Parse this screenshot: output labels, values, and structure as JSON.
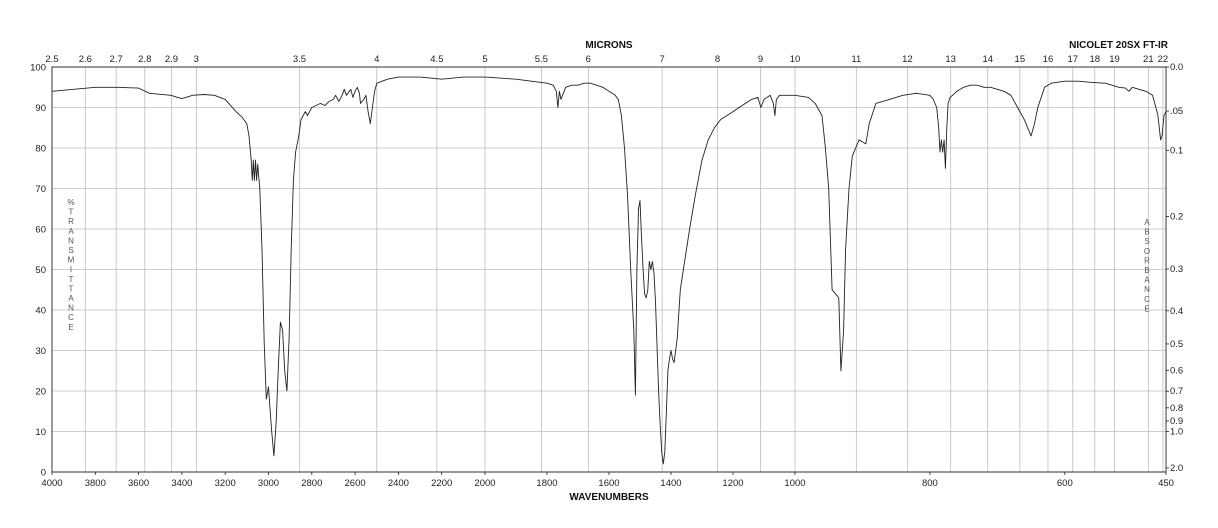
{
  "chart_data": {
    "type": "line",
    "title": "",
    "top_axis_title": "MICRONS",
    "instrument_label": "NICOLET 20SX FT-IR",
    "xlabel": "WAVENUMBERS",
    "ylabel_left": "%TRANSMITTANCE",
    "ylabel_right": "ABSORBANCE",
    "xlim": [
      4000,
      450
    ],
    "ylim": [
      0,
      100
    ],
    "grid": true,
    "x_ticks": [
      4000,
      3800,
      3600,
      3400,
      3200,
      3000,
      2800,
      2600,
      2400,
      2200,
      2000,
      1800,
      1600,
      1400,
      1200,
      1000,
      800,
      600,
      450
    ],
    "x_tick_labels": [
      "4000",
      "3800",
      "3600",
      "3400",
      "3200",
      "3000",
      "2800",
      "2600",
      "2400",
      "2200",
      "2000",
      "1800",
      "1600",
      "1400",
      "1200",
      "1000",
      "800",
      "600",
      "450"
    ],
    "y_ticks": [
      0,
      10,
      20,
      30,
      40,
      50,
      60,
      70,
      80,
      90,
      100
    ],
    "y_tick_labels": [
      "0",
      "10",
      "20",
      "30",
      "40",
      "50",
      "60",
      "70",
      "80",
      "90",
      "100"
    ],
    "micron_ticks": [
      {
        "value": 2.5,
        "label": "2.5"
      },
      {
        "value": 2.6,
        "label": "2.6"
      },
      {
        "value": 2.7,
        "label": "2.7"
      },
      {
        "value": 2.8,
        "label": "2.8"
      },
      {
        "value": 2.9,
        "label": "2.9"
      },
      {
        "value": 3,
        "label": "3"
      },
      {
        "value": 3.5,
        "label": "3.5"
      },
      {
        "value": 4,
        "label": "4"
      },
      {
        "value": 4.5,
        "label": "4.5"
      },
      {
        "value": 5,
        "label": "5"
      },
      {
        "value": 5.5,
        "label": "5.5"
      },
      {
        "value": 6,
        "label": "6"
      },
      {
        "value": 7,
        "label": "7"
      },
      {
        "value": 8,
        "label": "8"
      },
      {
        "value": 9,
        "label": "9"
      },
      {
        "value": 10,
        "label": "10"
      },
      {
        "value": 11,
        "label": "11"
      },
      {
        "value": 12,
        "label": "12"
      },
      {
        "value": 13,
        "label": "13"
      },
      {
        "value": 14,
        "label": "14"
      },
      {
        "value": 15,
        "label": "15"
      },
      {
        "value": 16,
        "label": "16"
      },
      {
        "value": 17,
        "label": "17"
      },
      {
        "value": 18,
        "label": "18"
      },
      {
        "value": 19,
        "label": "19"
      },
      {
        "value": 21,
        "label": "21"
      },
      {
        "value": 22,
        "label": "22"
      }
    ],
    "absorbance_ticks": [
      {
        "value": 0,
        "label": "0.0"
      },
      {
        "value": 0.05,
        "label": ".05"
      },
      {
        "value": 0.1,
        "label": "0.1"
      },
      {
        "value": 0.2,
        "label": "0.2"
      },
      {
        "value": 0.3,
        "label": "0.3"
      },
      {
        "value": 0.4,
        "label": "0.4"
      },
      {
        "value": 0.5,
        "label": "0.5"
      },
      {
        "value": 0.6,
        "label": "0.6"
      },
      {
        "value": 0.7,
        "label": "0.7"
      },
      {
        "value": 0.8,
        "label": "0.8"
      },
      {
        "value": 0.9,
        "label": "0.9"
      },
      {
        "value": 1.0,
        "label": "1.0"
      },
      {
        "value": 2.0,
        "label": "2.0"
      }
    ],
    "series": [
      {
        "values": [
          [
            4000,
            94
          ],
          [
            3900,
            94.5
          ],
          [
            3800,
            95
          ],
          [
            3700,
            95
          ],
          [
            3600,
            94.8
          ],
          [
            3550,
            93.5
          ],
          [
            3450,
            93
          ],
          [
            3420,
            92.5
          ],
          [
            3400,
            92.2
          ],
          [
            3350,
            93
          ],
          [
            3300,
            93.2
          ],
          [
            3250,
            93
          ],
          [
            3200,
            92
          ],
          [
            3150,
            89
          ],
          [
            3120,
            87.5
          ],
          [
            3100,
            86
          ],
          [
            3090,
            83
          ],
          [
            3080,
            77
          ],
          [
            3075,
            72
          ],
          [
            3070,
            77
          ],
          [
            3065,
            72
          ],
          [
            3060,
            77
          ],
          [
            3055,
            72
          ],
          [
            3050,
            76
          ],
          [
            3040,
            70
          ],
          [
            3030,
            55
          ],
          [
            3020,
            32
          ],
          [
            3010,
            18
          ],
          [
            3000,
            21
          ],
          [
            2995,
            17
          ],
          [
            2985,
            10
          ],
          [
            2975,
            4
          ],
          [
            2965,
            12
          ],
          [
            2955,
            25
          ],
          [
            2945,
            37
          ],
          [
            2935,
            35
          ],
          [
            2925,
            25
          ],
          [
            2915,
            20
          ],
          [
            2905,
            33
          ],
          [
            2895,
            55
          ],
          [
            2885,
            72
          ],
          [
            2875,
            79
          ],
          [
            2860,
            83
          ],
          [
            2850,
            87
          ],
          [
            2830,
            89
          ],
          [
            2820,
            88
          ],
          [
            2800,
            90
          ],
          [
            2780,
            90.5
          ],
          [
            2760,
            91
          ],
          [
            2740,
            90.5
          ],
          [
            2720,
            91.5
          ],
          [
            2700,
            92
          ],
          [
            2690,
            93
          ],
          [
            2675,
            91.5
          ],
          [
            2660,
            93
          ],
          [
            2650,
            94.5
          ],
          [
            2640,
            93
          ],
          [
            2620,
            94.5
          ],
          [
            2610,
            92.5
          ],
          [
            2600,
            94
          ],
          [
            2590,
            95
          ],
          [
            2580,
            93.5
          ],
          [
            2575,
            91
          ],
          [
            2560,
            92
          ],
          [
            2550,
            93
          ],
          [
            2540,
            89
          ],
          [
            2530,
            86
          ],
          [
            2520,
            90
          ],
          [
            2510,
            94
          ],
          [
            2500,
            96
          ],
          [
            2450,
            97
          ],
          [
            2400,
            97.5
          ],
          [
            2300,
            97.5
          ],
          [
            2200,
            97
          ],
          [
            2100,
            97.5
          ],
          [
            2000,
            97.5
          ],
          [
            1900,
            97
          ],
          [
            1850,
            96.5
          ],
          [
            1800,
            96
          ],
          [
            1780,
            95.5
          ],
          [
            1770,
            94
          ],
          [
            1765,
            90
          ],
          [
            1760,
            94
          ],
          [
            1755,
            92
          ],
          [
            1740,
            95
          ],
          [
            1720,
            95.5
          ],
          [
            1700,
            95.5
          ],
          [
            1680,
            96
          ],
          [
            1660,
            96
          ],
          [
            1640,
            95.5
          ],
          [
            1620,
            95
          ],
          [
            1600,
            94
          ],
          [
            1580,
            93
          ],
          [
            1570,
            92
          ],
          [
            1560,
            88
          ],
          [
            1550,
            80
          ],
          [
            1540,
            68
          ],
          [
            1530,
            50
          ],
          [
            1520,
            35
          ],
          [
            1515,
            19
          ],
          [
            1510,
            50
          ],
          [
            1505,
            65
          ],
          [
            1500,
            67
          ],
          [
            1495,
            58
          ],
          [
            1490,
            50
          ],
          [
            1485,
            44
          ],
          [
            1480,
            43
          ],
          [
            1475,
            45
          ],
          [
            1470,
            52
          ],
          [
            1465,
            50
          ],
          [
            1460,
            52
          ],
          [
            1455,
            49
          ],
          [
            1450,
            42
          ],
          [
            1440,
            20
          ],
          [
            1435,
            12
          ],
          [
            1430,
            5
          ],
          [
            1425,
            2
          ],
          [
            1420,
            5
          ],
          [
            1415,
            15
          ],
          [
            1410,
            25
          ],
          [
            1405,
            28
          ],
          [
            1400,
            30
          ],
          [
            1395,
            28
          ],
          [
            1390,
            27
          ],
          [
            1380,
            33
          ],
          [
            1370,
            45
          ],
          [
            1360,
            50
          ],
          [
            1340,
            60
          ],
          [
            1320,
            69
          ],
          [
            1300,
            77
          ],
          [
            1280,
            82
          ],
          [
            1260,
            85
          ],
          [
            1240,
            87
          ],
          [
            1220,
            88
          ],
          [
            1200,
            89
          ],
          [
            1180,
            90
          ],
          [
            1160,
            91
          ],
          [
            1140,
            92
          ],
          [
            1120,
            92.5
          ],
          [
            1110,
            90
          ],
          [
            1100,
            92
          ],
          [
            1090,
            92.5
          ],
          [
            1080,
            93
          ],
          [
            1070,
            91
          ],
          [
            1065,
            88
          ],
          [
            1060,
            92
          ],
          [
            1050,
            93
          ],
          [
            1020,
            93
          ],
          [
            1000,
            93
          ],
          [
            980,
            92.5
          ],
          [
            970,
            91
          ],
          [
            960,
            88
          ],
          [
            955,
            80
          ],
          [
            950,
            70
          ],
          [
            945,
            45
          ],
          [
            940,
            44
          ],
          [
            935,
            43
          ],
          [
            932,
            25
          ],
          [
            928,
            35
          ],
          [
            925,
            55
          ],
          [
            920,
            70
          ],
          [
            915,
            78
          ],
          [
            905,
            82
          ],
          [
            895,
            81
          ],
          [
            890,
            86
          ],
          [
            880,
            91
          ],
          [
            860,
            92
          ],
          [
            840,
            93
          ],
          [
            820,
            93.5
          ],
          [
            800,
            93
          ],
          [
            795,
            92
          ],
          [
            790,
            90
          ],
          [
            787,
            85
          ],
          [
            785,
            79
          ],
          [
            783,
            82
          ],
          [
            781,
            79
          ],
          [
            779,
            82
          ],
          [
            777,
            75
          ],
          [
            775,
            85
          ],
          [
            773,
            91
          ],
          [
            770,
            92.5
          ],
          [
            760,
            94
          ],
          [
            750,
            95
          ],
          [
            740,
            95.5
          ],
          [
            730,
            95.5
          ],
          [
            720,
            95
          ],
          [
            710,
            95
          ],
          [
            700,
            94.5
          ],
          [
            690,
            94
          ],
          [
            680,
            93
          ],
          [
            670,
            90
          ],
          [
            660,
            87
          ],
          [
            655,
            85
          ],
          [
            650,
            83
          ],
          [
            645,
            86
          ],
          [
            640,
            90
          ],
          [
            630,
            95
          ],
          [
            620,
            96
          ],
          [
            600,
            96.5
          ],
          [
            580,
            96.5
          ],
          [
            560,
            96.2
          ],
          [
            540,
            96
          ],
          [
            530,
            95.5
          ],
          [
            520,
            95
          ],
          [
            510,
            94.8
          ],
          [
            505,
            94
          ],
          [
            500,
            95
          ],
          [
            490,
            94.5
          ],
          [
            480,
            94
          ],
          [
            470,
            93
          ],
          [
            465,
            90
          ],
          [
            462,
            88
          ],
          [
            460,
            85
          ],
          [
            458,
            82
          ],
          [
            456,
            83
          ],
          [
            453,
            88
          ],
          [
            450,
            89
          ]
        ]
      }
    ]
  }
}
